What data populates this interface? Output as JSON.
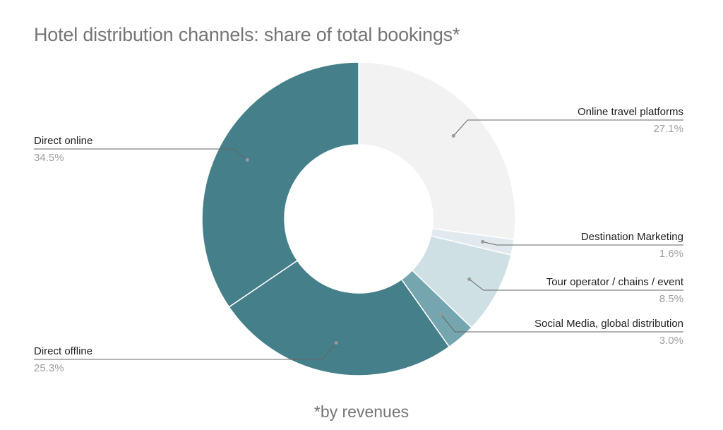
{
  "chart_data": {
    "type": "pie",
    "title": "Hotel distribution channels: share of total bookings*",
    "footnote": "*by revenues",
    "slices": [
      {
        "label": "Online travel platforms",
        "value": 27.1,
        "value_label": "27.1%",
        "color": "#f2f2f2",
        "side": "right"
      },
      {
        "label": "Destination Marketing",
        "value": 1.6,
        "value_label": "1.6%",
        "color": "#e1e9ee",
        "side": "right"
      },
      {
        "label": "Tour operator / chains / event",
        "value": 8.5,
        "value_label": "8.5%",
        "color": "#cfe0e5",
        "side": "right"
      },
      {
        "label": "Social Media, global distribution",
        "value": 3.0,
        "value_label": "3.0%",
        "color": "#75a5ae",
        "side": "right"
      },
      {
        "label": "Direct offline",
        "value": 25.3,
        "value_label": "25.3%",
        "color": "#457f8a",
        "side": "left"
      },
      {
        "label": "Direct online",
        "value": 34.5,
        "value_label": "34.5%",
        "color": "#457f8a",
        "side": "left"
      }
    ],
    "donut": true,
    "legend": "none"
  }
}
